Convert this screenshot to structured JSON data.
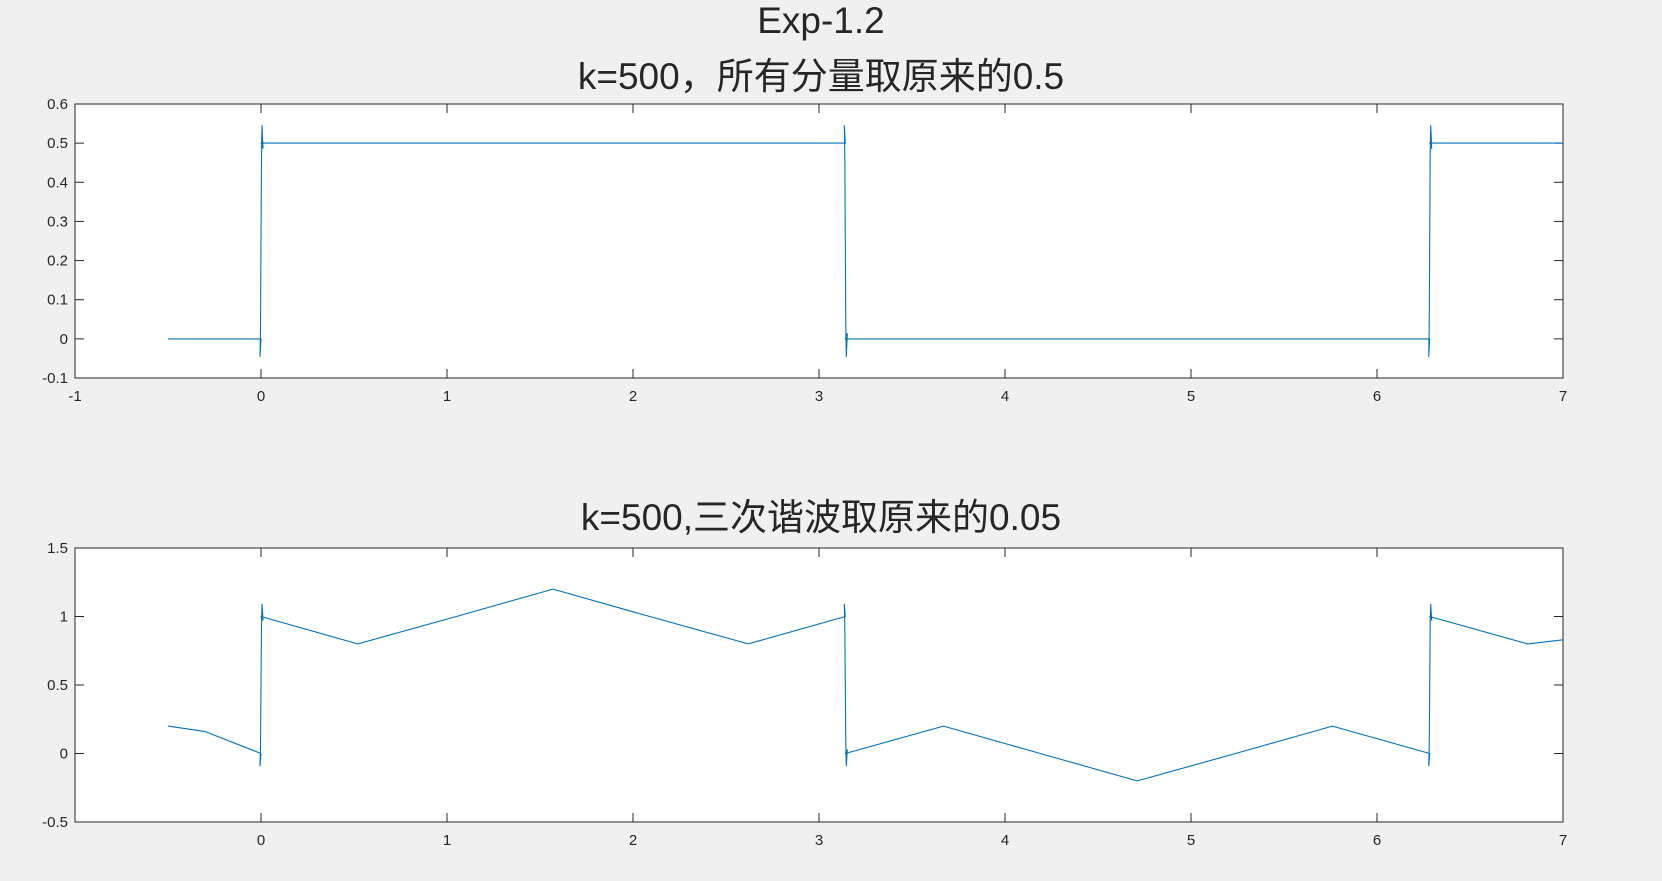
{
  "figure": {
    "suptitle": "Exp-1.2",
    "background": "#f0f0f0"
  },
  "chart_data": [
    {
      "type": "line",
      "title": "k=500，所有分量取原来的0.5",
      "xlabel": "",
      "ylabel": "",
      "xlim": [
        -1,
        7
      ],
      "ylim": [
        -0.1,
        0.6
      ],
      "xticks": [
        "-1",
        "0",
        "1",
        "2",
        "3",
        "4",
        "5",
        "6",
        "7"
      ],
      "yticks": [
        "-0.1",
        "0",
        "0.1",
        "0.2",
        "0.3",
        "0.4",
        "0.5",
        "0.6"
      ],
      "grid": false,
      "legend": "none",
      "color": "#0072bd",
      "series": [
        {
          "x": [
            -0.5,
            0.0,
            0.0,
            3.1416,
            3.1416,
            6.2832,
            6.2832,
            7.0
          ],
          "y": [
            0.0,
            0.0,
            0.5,
            0.5,
            0.0,
            0.0,
            0.5,
            0.5
          ]
        }
      ],
      "gibbs_overshoot": 0.045
    },
    {
      "type": "line",
      "title": "k=500,三次谐波取原来的0.05",
      "xlabel": "",
      "ylabel": "",
      "xlim": [
        -1,
        7
      ],
      "ylim": [
        -0.5,
        1.5
      ],
      "xticks": [
        "0",
        "1",
        "2",
        "3",
        "4",
        "5",
        "6",
        "7"
      ],
      "yticks": [
        "-0.5",
        "0",
        "0.5",
        "1",
        "1.5"
      ],
      "grid": false,
      "legend": "none",
      "color": "#0072bd",
      "series": [
        {
          "x": [
            -0.5,
            -0.3,
            0.0,
            0.0,
            0.52,
            1.05,
            1.57,
            2.09,
            2.62,
            3.1416,
            3.1416,
            3.67,
            4.19,
            4.71,
            5.24,
            5.76,
            6.2832,
            6.2832,
            6.81,
            7.0
          ],
          "y": [
            0.2,
            0.16,
            0.0,
            1.0,
            0.8,
            1.0,
            1.2,
            1.0,
            0.8,
            1.0,
            0.0,
            0.2,
            0.0,
            -0.2,
            0.0,
            0.2,
            0.0,
            1.0,
            0.8,
            0.83
          ]
        }
      ],
      "gibbs_overshoot": 0.09
    }
  ]
}
